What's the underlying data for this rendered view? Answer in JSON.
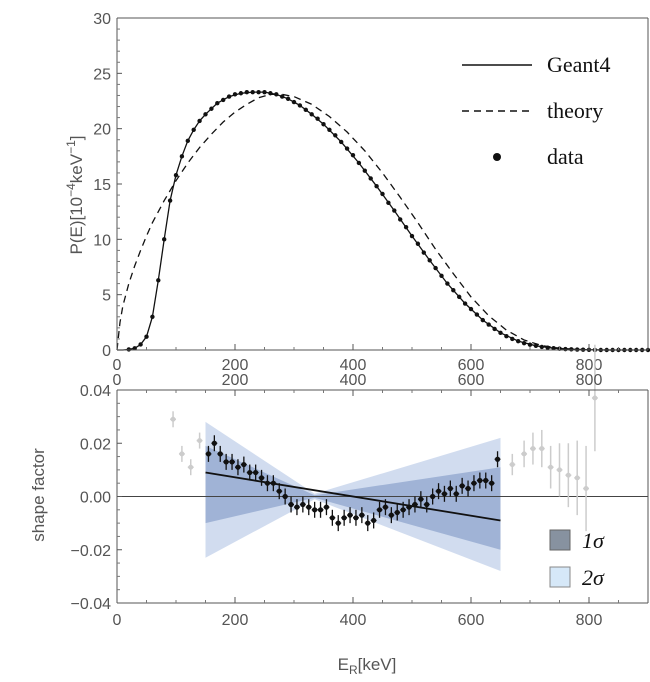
{
  "chart_data": [
    {
      "type": "line",
      "xlim": [
        0,
        900
      ],
      "ylim": [
        0,
        30
      ],
      "ylabel_main": "P(E)[10",
      "ylabel_exp1": "−4",
      "ylabel_unit": "keV",
      "ylabel_exp2": "−1",
      "ylabel_close": "]",
      "xticks": [
        "0",
        "200",
        "400",
        "600",
        "800"
      ],
      "yticks": [
        "0",
        "5",
        "10",
        "15",
        "20",
        "25",
        "30"
      ],
      "legend": {
        "geant4": "Geant4",
        "theory": "theory",
        "data": "data"
      },
      "series": [
        {
          "name": "Geant4",
          "style": "solid",
          "x": [
            0,
            10,
            20,
            30,
            40,
            50,
            60,
            70,
            80,
            90,
            100,
            110,
            120,
            130,
            140,
            150,
            170,
            190,
            210,
            230,
            250,
            270,
            290,
            310,
            330,
            350,
            380,
            410,
            440,
            470,
            500,
            530,
            560,
            590,
            620,
            650,
            680,
            710,
            740,
            770,
            800,
            830,
            860,
            900
          ],
          "y": [
            0,
            0,
            0.05,
            0.15,
            0.5,
            1.2,
            3.0,
            6.3,
            10.0,
            13.5,
            15.8,
            17.5,
            18.9,
            19.9,
            20.7,
            21.3,
            22.3,
            22.9,
            23.2,
            23.3,
            23.3,
            23.1,
            22.7,
            22.1,
            21.3,
            20.4,
            18.8,
            16.9,
            14.8,
            12.6,
            10.3,
            8.1,
            6.0,
            4.2,
            2.7,
            1.55,
            0.8,
            0.38,
            0.16,
            0.06,
            0.02,
            0.0,
            0.0,
            0.0
          ]
        },
        {
          "name": "theory",
          "style": "dashed",
          "x": [
            0,
            5,
            10,
            20,
            30,
            40,
            50,
            60,
            70,
            80,
            100,
            120,
            140,
            160,
            180,
            200,
            220,
            240,
            260,
            280,
            300,
            330,
            360,
            390,
            420,
            450,
            480,
            510,
            540,
            570,
            600,
            630,
            660,
            690,
            720,
            750,
            780,
            810,
            840
          ],
          "y": [
            0,
            2.5,
            4.0,
            6.0,
            7.6,
            9.0,
            10.3,
            11.5,
            12.5,
            13.5,
            15.3,
            16.9,
            18.3,
            19.5,
            20.6,
            21.5,
            22.2,
            22.8,
            23.1,
            23.1,
            22.9,
            22.2,
            21.1,
            19.7,
            18.0,
            16.0,
            13.8,
            11.5,
            9.1,
            6.9,
            4.8,
            3.1,
            1.8,
            0.9,
            0.4,
            0.15,
            0.05,
            0.01,
            0.0
          ]
        },
        {
          "name": "data",
          "style": "points",
          "x": [
            20,
            30,
            40,
            50,
            60,
            70,
            80,
            90,
            100,
            110,
            120,
            130,
            140,
            150,
            160,
            170,
            180,
            190,
            200,
            210,
            220,
            230,
            240,
            250,
            260,
            270,
            280,
            290,
            300,
            310,
            320,
            330,
            340,
            350,
            360,
            370,
            380,
            390,
            400,
            410,
            420,
            430,
            440,
            450,
            460,
            470,
            480,
            490,
            500,
            510,
            520,
            530,
            540,
            550,
            560,
            570,
            580,
            590,
            600,
            610,
            620,
            630,
            640,
            650,
            660,
            670,
            680,
            690,
            700,
            710,
            720,
            730,
            740,
            750,
            760,
            770,
            780,
            790,
            800,
            810,
            820,
            830,
            840,
            850,
            860,
            870,
            880,
            890,
            900
          ],
          "y": [
            0.05,
            0.15,
            0.5,
            1.2,
            3.0,
            6.3,
            10.0,
            13.5,
            15.8,
            17.5,
            18.9,
            19.9,
            20.7,
            21.3,
            21.8,
            22.3,
            22.6,
            22.9,
            23.1,
            23.2,
            23.3,
            23.3,
            23.3,
            23.3,
            23.2,
            23.1,
            22.9,
            22.7,
            22.4,
            22.1,
            21.7,
            21.3,
            20.9,
            20.4,
            19.9,
            19.4,
            18.8,
            18.2,
            17.6,
            16.9,
            16.2,
            15.5,
            14.8,
            14.1,
            13.3,
            12.6,
            11.8,
            11.1,
            10.3,
            9.6,
            8.8,
            8.1,
            7.4,
            6.7,
            6.0,
            5.4,
            4.8,
            4.2,
            3.7,
            3.2,
            2.7,
            2.3,
            1.9,
            1.55,
            1.25,
            1.0,
            0.8,
            0.62,
            0.48,
            0.38,
            0.28,
            0.21,
            0.16,
            0.12,
            0.08,
            0.06,
            0.04,
            0.03,
            0.02,
            0.01,
            0.0,
            0.0,
            0.0,
            0.0,
            0.0,
            0.0,
            0.0,
            0.0,
            0.0
          ]
        }
      ]
    },
    {
      "type": "scatter",
      "xlim": [
        0,
        900
      ],
      "ylim": [
        -0.04,
        0.04
      ],
      "xlabel_main": "E",
      "xlabel_sub": "R",
      "xlabel_unit": "[keV]",
      "ylabel": "shape factor",
      "xticks": [
        "0",
        "200",
        "400",
        "600",
        "800"
      ],
      "yticks": [
        "−0.04",
        "−0.02",
        "0.00",
        "0.02",
        "0.04"
      ],
      "legend": {
        "one_sigma": "1σ",
        "two_sigma": "2σ"
      },
      "colors": {
        "band_1sigma": "#7f98c4",
        "band_2sigma": "#c9d6ec",
        "legend_1sigma": "#8792a0",
        "legend_2sigma": "#d6e8f8",
        "faded_points": "#cccccc"
      },
      "fit_line": {
        "x": [
          150,
          650
        ],
        "y": [
          0.009,
          -0.009
        ]
      },
      "band_2sigma": {
        "x": [
          150,
          335,
          650
        ],
        "upper": [
          0.028,
          0.001,
          0.022
        ],
        "lower": [
          -0.023,
          -0.001,
          -0.028
        ]
      },
      "band_1sigma": {
        "x": [
          150,
          335,
          650
        ],
        "upper": [
          0.019,
          0.0005,
          0.011
        ],
        "lower": [
          -0.01,
          -0.0005,
          -0.02
        ]
      },
      "points": {
        "x": [
          155,
          165,
          175,
          185,
          195,
          205,
          215,
          225,
          235,
          245,
          255,
          265,
          275,
          285,
          295,
          305,
          315,
          325,
          335,
          345,
          355,
          365,
          375,
          385,
          395,
          405,
          415,
          425,
          435,
          445,
          455,
          465,
          475,
          485,
          495,
          505,
          515,
          525,
          535,
          545,
          555,
          565,
          575,
          585,
          595,
          605,
          615,
          625,
          635,
          645
        ],
        "y": [
          0.016,
          0.02,
          0.016,
          0.013,
          0.013,
          0.011,
          0.012,
          0.009,
          0.009,
          0.007,
          0.005,
          0.005,
          0.002,
          0.0,
          -0.003,
          -0.004,
          -0.003,
          -0.004,
          -0.005,
          -0.005,
          -0.004,
          -0.008,
          -0.01,
          -0.008,
          -0.007,
          -0.008,
          -0.007,
          -0.01,
          -0.009,
          -0.005,
          -0.004,
          -0.007,
          -0.006,
          -0.005,
          -0.004,
          -0.003,
          -0.001,
          -0.003,
          0.0,
          0.002,
          0.001,
          0.003,
          0.001,
          0.004,
          0.003,
          0.005,
          0.006,
          0.006,
          0.005,
          0.014
        ],
        "yerr": 0.003,
        "xerr": 5
      },
      "faded_points": {
        "x": [
          95,
          110,
          125,
          140,
          670,
          690,
          705,
          720,
          735,
          750,
          765,
          780,
          795,
          810
        ],
        "y": [
          0.029,
          0.016,
          0.011,
          0.021,
          0.012,
          0.016,
          0.018,
          0.018,
          0.011,
          0.01,
          0.008,
          0.007,
          0.003,
          0.037
        ],
        "yerr": [
          0.003,
          0.003,
          0.003,
          0.003,
          0.004,
          0.005,
          0.006,
          0.007,
          0.008,
          0.01,
          0.012,
          0.014,
          0.016,
          0.02
        ]
      }
    }
  ]
}
